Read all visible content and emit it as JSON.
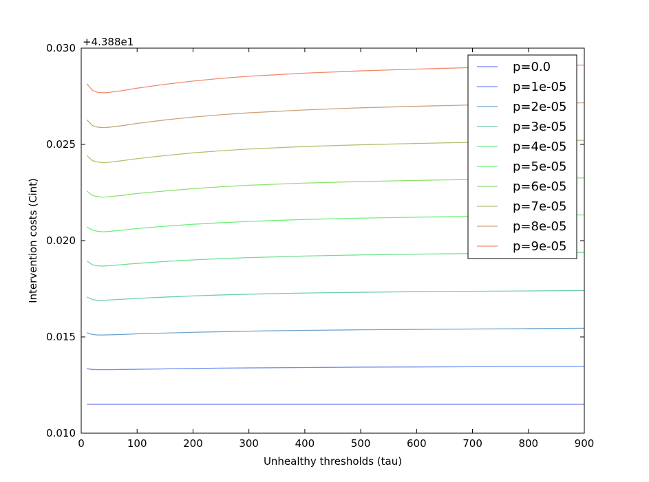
{
  "chart_data": {
    "type": "line",
    "title": "",
    "xlabel": "Unhealthy thresholds (tau)",
    "ylabel": "Intervention costs (Cint)",
    "y_offset_label": "+4.388e1",
    "xlim": [
      0,
      900
    ],
    "ylim": [
      0.01,
      0.03
    ],
    "x_ticks": [
      0,
      100,
      200,
      300,
      400,
      500,
      600,
      700,
      800,
      900
    ],
    "x_tick_labels": [
      "0",
      "100",
      "200",
      "300",
      "400",
      "500",
      "600",
      "700",
      "800",
      "900"
    ],
    "y_ticks": [
      0.01,
      0.015,
      0.02,
      0.025,
      0.03
    ],
    "y_tick_labels": [
      "0.010",
      "0.015",
      "0.020",
      "0.025",
      "0.030"
    ],
    "grid": false,
    "legend_position": "top-right",
    "x": [
      10,
      20,
      30,
      40,
      50,
      75,
      100,
      150,
      200,
      250,
      300,
      400,
      500,
      600,
      700,
      800,
      900
    ],
    "series": [
      {
        "name": "p=0.0",
        "color": "#6f7ff0",
        "values": [
          0.0115,
          0.0115,
          0.0115,
          0.0115,
          0.0115,
          0.0115,
          0.0115,
          0.0115,
          0.0115,
          0.0115,
          0.0115,
          0.0115,
          0.0115,
          0.0115,
          0.0115,
          0.0115,
          0.0115
        ]
      },
      {
        "name": "p=1e-05",
        "color": "#6f8ef0",
        "values": [
          0.01335,
          0.01331,
          0.0133,
          0.0133,
          0.0133,
          0.01331,
          0.01332,
          0.01334,
          0.01336,
          0.01338,
          0.01339,
          0.01341,
          0.01343,
          0.01344,
          0.01345,
          0.01346,
          0.01347
        ]
      },
      {
        "name": "p=2e-05",
        "color": "#6fa4d0",
        "values": [
          0.01522,
          0.01513,
          0.0151,
          0.0151,
          0.01511,
          0.01513,
          0.01516,
          0.0152,
          0.01524,
          0.01527,
          0.0153,
          0.01534,
          0.01537,
          0.01539,
          0.01541,
          0.01543,
          0.01545
        ]
      },
      {
        "name": "p=3e-05",
        "color": "#6fcfa8",
        "values": [
          0.01708,
          0.01694,
          0.0169,
          0.0169,
          0.01692,
          0.01696,
          0.017,
          0.01707,
          0.01713,
          0.01718,
          0.01722,
          0.01728,
          0.01732,
          0.01735,
          0.01737,
          0.01739,
          0.01741
        ]
      },
      {
        "name": "p=4e-05",
        "color": "#6fe090",
        "values": [
          0.01895,
          0.01875,
          0.01869,
          0.01868,
          0.0187,
          0.01876,
          0.01882,
          0.01892,
          0.019,
          0.01907,
          0.01912,
          0.0192,
          0.01926,
          0.0193,
          0.01933,
          0.01936,
          0.01939
        ]
      },
      {
        "name": "p=5e-05",
        "color": "#6ff07a",
        "values": [
          0.02072,
          0.02055,
          0.02048,
          0.02046,
          0.02048,
          0.02055,
          0.02063,
          0.02075,
          0.02085,
          0.02093,
          0.021,
          0.0211,
          0.02117,
          0.02122,
          0.02126,
          0.0213,
          0.02134
        ]
      },
      {
        "name": "p=6e-05",
        "color": "#8ee070",
        "values": [
          0.02258,
          0.02235,
          0.02228,
          0.02226,
          0.02228,
          0.02236,
          0.02245,
          0.02258,
          0.0227,
          0.0228,
          0.02288,
          0.02299,
          0.02307,
          0.02313,
          0.02318,
          0.02322,
          0.02326
        ]
      },
      {
        "name": "p=7e-05",
        "color": "#b0c070",
        "values": [
          0.02442,
          0.02416,
          0.02408,
          0.02405,
          0.02407,
          0.02416,
          0.02426,
          0.02442,
          0.02456,
          0.02467,
          0.02476,
          0.02489,
          0.02498,
          0.02505,
          0.02511,
          0.02516,
          0.02521
        ]
      },
      {
        "name": "p=8e-05",
        "color": "#caa37a",
        "values": [
          0.02628,
          0.02598,
          0.02589,
          0.02587,
          0.02589,
          0.02598,
          0.02609,
          0.02627,
          0.02642,
          0.02654,
          0.02664,
          0.02679,
          0.0269,
          0.02698,
          0.02705,
          0.02711,
          0.02716
        ]
      },
      {
        "name": "p=9e-05",
        "color": "#f08a6f",
        "values": [
          0.02815,
          0.02781,
          0.0277,
          0.02768,
          0.0277,
          0.0278,
          0.02792,
          0.02812,
          0.02829,
          0.02843,
          0.02854,
          0.0287,
          0.02882,
          0.02891,
          0.02899,
          0.02906,
          0.02912
        ]
      }
    ]
  }
}
